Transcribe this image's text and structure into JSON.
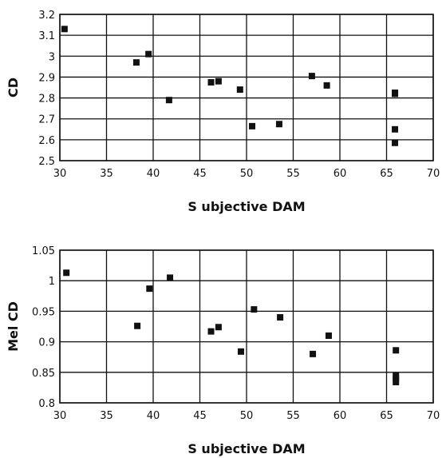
{
  "chart_data": [
    {
      "type": "scatter",
      "xlabel": "S ubjective DAM",
      "ylabel": "CD",
      "xlim": [
        30,
        70
      ],
      "ylim": [
        2.5,
        3.2
      ],
      "xticks": [
        30,
        35,
        40,
        45,
        50,
        55,
        60,
        65,
        70
      ],
      "yticks": [
        2.5,
        2.6,
        2.7,
        2.8,
        2.9,
        3.0,
        3.1,
        3.2
      ],
      "xtick_labels": [
        "30",
        "35",
        "40",
        "45",
        "50",
        "55",
        "60",
        "65",
        "70"
      ],
      "ytick_labels": [
        "2.5",
        "2.6",
        "2.7",
        "2.8",
        "2.9",
        "3",
        "3.1",
        "3.2"
      ],
      "grid": true,
      "marker_color": "#111111",
      "points": [
        {
          "x": 30.5,
          "y": 3.13
        },
        {
          "x": 38.2,
          "y": 2.97
        },
        {
          "x": 39.5,
          "y": 3.01
        },
        {
          "x": 41.7,
          "y": 2.79
        },
        {
          "x": 46.2,
          "y": 2.875
        },
        {
          "x": 47.0,
          "y": 2.88
        },
        {
          "x": 49.3,
          "y": 2.84
        },
        {
          "x": 50.6,
          "y": 2.665
        },
        {
          "x": 53.5,
          "y": 2.675
        },
        {
          "x": 57.0,
          "y": 2.905
        },
        {
          "x": 58.6,
          "y": 2.86
        },
        {
          "x": 65.9,
          "y": 2.825
        },
        {
          "x": 65.9,
          "y": 2.82
        },
        {
          "x": 65.9,
          "y": 2.65
        },
        {
          "x": 65.9,
          "y": 2.585
        }
      ]
    },
    {
      "type": "scatter",
      "xlabel": "S ubjective DAM",
      "ylabel": "Mel CD",
      "xlim": [
        30,
        70
      ],
      "ylim": [
        0.8,
        1.05
      ],
      "xticks": [
        30,
        35,
        40,
        45,
        50,
        55,
        60,
        65,
        70
      ],
      "yticks": [
        0.8,
        0.85,
        0.9,
        0.95,
        1.0,
        1.05
      ],
      "xtick_labels": [
        "30",
        "35",
        "40",
        "45",
        "50",
        "55",
        "60",
        "65",
        "70"
      ],
      "ytick_labels": [
        "0.8",
        "0.85",
        "0.9",
        "0.95",
        "1",
        "1.05"
      ],
      "grid": true,
      "marker_color": "#111111",
      "points": [
        {
          "x": 30.7,
          "y": 1.013
        },
        {
          "x": 38.3,
          "y": 0.926
        },
        {
          "x": 39.6,
          "y": 0.987
        },
        {
          "x": 41.8,
          "y": 1.005
        },
        {
          "x": 46.2,
          "y": 0.917
        },
        {
          "x": 47.0,
          "y": 0.924
        },
        {
          "x": 49.4,
          "y": 0.884
        },
        {
          "x": 50.8,
          "y": 0.953
        },
        {
          "x": 53.6,
          "y": 0.94
        },
        {
          "x": 57.1,
          "y": 0.88
        },
        {
          "x": 58.8,
          "y": 0.91
        },
        {
          "x": 66.0,
          "y": 0.886
        },
        {
          "x": 66.0,
          "y": 0.845
        },
        {
          "x": 66.0,
          "y": 0.84
        },
        {
          "x": 66.0,
          "y": 0.834
        }
      ]
    }
  ]
}
